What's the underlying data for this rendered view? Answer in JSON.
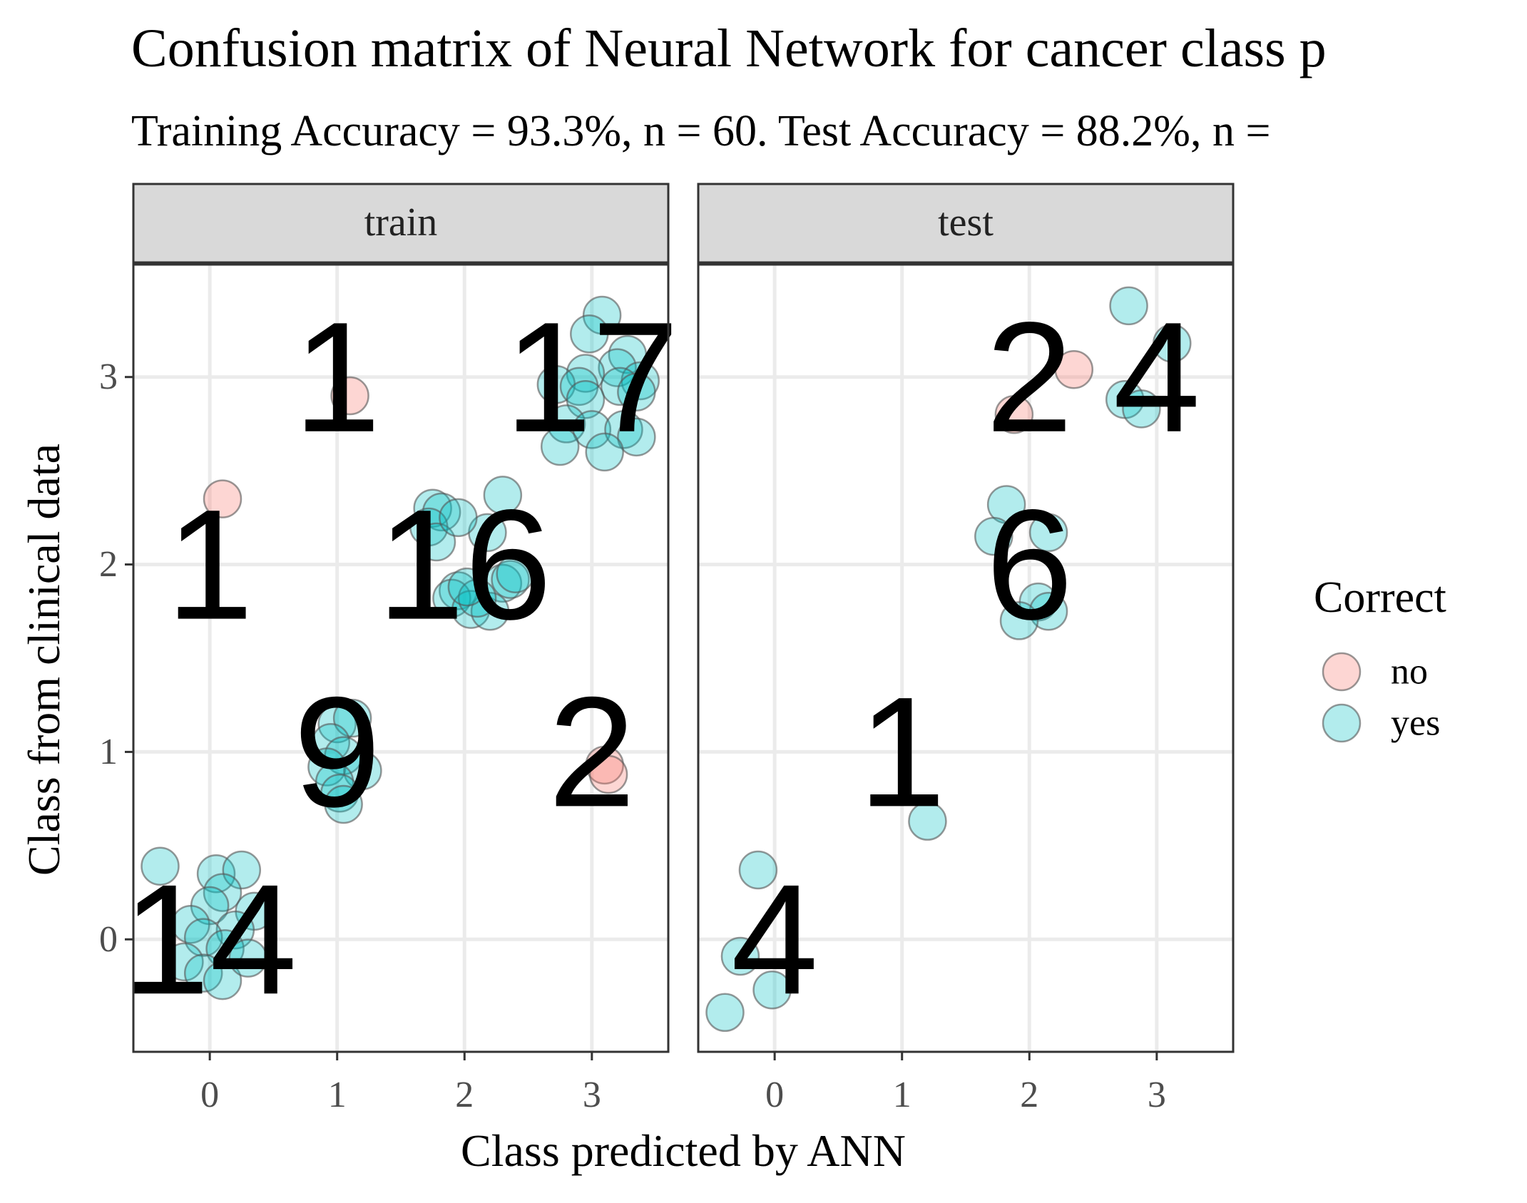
{
  "chart_data": {
    "type": "scatter",
    "title": "Confusion matrix of Neural Network for cancer class p",
    "subtitle": "Training Accuracy = 93.3%, n = 60. Test Accuracy = 88.2%, n =",
    "xlabel": "Class predicted by ANN",
    "ylabel": "Class from clinical data",
    "xlim": [
      -0.6,
      3.6
    ],
    "ylim": [
      -0.6,
      3.6
    ],
    "x_ticks": [
      "0",
      "1",
      "2",
      "3"
    ],
    "y_ticks": [
      "0",
      "1",
      "2",
      "3"
    ],
    "grid": true,
    "legend": {
      "title": "Correct",
      "position": "right",
      "entries": [
        {
          "label": "no",
          "color": "#F8766D"
        },
        {
          "label": "yes",
          "color": "#00BFC4"
        }
      ]
    },
    "panels": [
      {
        "strip": "train",
        "counts": [
          {
            "x": 0,
            "y": 0,
            "label": "14"
          },
          {
            "x": 1,
            "y": 1,
            "label": "9"
          },
          {
            "x": 3,
            "y": 1,
            "label": "2"
          },
          {
            "x": 0,
            "y": 2,
            "label": "1"
          },
          {
            "x": 2,
            "y": 2,
            "label": "16"
          },
          {
            "x": 1,
            "y": 3,
            "label": "1"
          },
          {
            "x": 3,
            "y": 3,
            "label": "17"
          }
        ],
        "points": [
          {
            "x": -0.39,
            "y": 0.39,
            "correct": "yes"
          },
          {
            "x": 0.05,
            "y": 0.35,
            "correct": "yes"
          },
          {
            "x": 0.25,
            "y": 0.37,
            "correct": "yes"
          },
          {
            "x": 0.1,
            "y": 0.25,
            "correct": "yes"
          },
          {
            "x": 0.0,
            "y": 0.18,
            "correct": "yes"
          },
          {
            "x": 0.35,
            "y": 0.15,
            "correct": "yes"
          },
          {
            "x": -0.15,
            "y": 0.08,
            "correct": "yes"
          },
          {
            "x": 0.2,
            "y": 0.05,
            "correct": "yes"
          },
          {
            "x": -0.05,
            "y": 0.01,
            "correct": "yes"
          },
          {
            "x": 0.12,
            "y": -0.05,
            "correct": "yes"
          },
          {
            "x": -0.2,
            "y": -0.12,
            "correct": "yes"
          },
          {
            "x": -0.05,
            "y": -0.18,
            "correct": "yes"
          },
          {
            "x": 0.1,
            "y": -0.22,
            "correct": "yes"
          },
          {
            "x": 0.3,
            "y": -0.1,
            "correct": "yes"
          },
          {
            "x": 1.0,
            "y": 1.15,
            "correct": "yes"
          },
          {
            "x": 1.12,
            "y": 1.18,
            "correct": "yes"
          },
          {
            "x": 0.95,
            "y": 1.05,
            "correct": "yes"
          },
          {
            "x": 1.05,
            "y": 0.98,
            "correct": "yes"
          },
          {
            "x": 0.92,
            "y": 0.92,
            "correct": "yes"
          },
          {
            "x": 1.2,
            "y": 0.9,
            "correct": "yes"
          },
          {
            "x": 0.98,
            "y": 0.84,
            "correct": "yes"
          },
          {
            "x": 1.02,
            "y": 0.78,
            "correct": "yes"
          },
          {
            "x": 1.05,
            "y": 0.72,
            "correct": "yes"
          },
          {
            "x": 3.1,
            "y": 0.93,
            "correct": "no"
          },
          {
            "x": 3.13,
            "y": 0.88,
            "correct": "no"
          },
          {
            "x": 0.1,
            "y": 2.35,
            "correct": "no"
          },
          {
            "x": 1.75,
            "y": 2.3,
            "correct": "yes"
          },
          {
            "x": 1.82,
            "y": 2.28,
            "correct": "yes"
          },
          {
            "x": 1.72,
            "y": 2.2,
            "correct": "yes"
          },
          {
            "x": 1.78,
            "y": 2.12,
            "correct": "yes"
          },
          {
            "x": 2.3,
            "y": 2.37,
            "correct": "yes"
          },
          {
            "x": 2.18,
            "y": 2.17,
            "correct": "yes"
          },
          {
            "x": 1.95,
            "y": 1.86,
            "correct": "yes"
          },
          {
            "x": 2.3,
            "y": 1.9,
            "correct": "yes"
          },
          {
            "x": 2.36,
            "y": 1.92,
            "correct": "yes"
          },
          {
            "x": 1.9,
            "y": 1.82,
            "correct": "yes"
          },
          {
            "x": 2.05,
            "y": 1.76,
            "correct": "yes"
          },
          {
            "x": 2.2,
            "y": 1.75,
            "correct": "yes"
          },
          {
            "x": 2.1,
            "y": 1.82,
            "correct": "yes"
          },
          {
            "x": 2.02,
            "y": 1.88,
            "correct": "yes"
          },
          {
            "x": 1.95,
            "y": 2.25,
            "correct": "yes"
          },
          {
            "x": 2.4,
            "y": 1.95,
            "correct": "yes"
          },
          {
            "x": 1.1,
            "y": 2.9,
            "correct": "no"
          },
          {
            "x": 3.08,
            "y": 3.33,
            "correct": "yes"
          },
          {
            "x": 2.98,
            "y": 3.23,
            "correct": "yes"
          },
          {
            "x": 3.28,
            "y": 3.12,
            "correct": "yes"
          },
          {
            "x": 3.2,
            "y": 3.05,
            "correct": "yes"
          },
          {
            "x": 2.95,
            "y": 3.02,
            "correct": "yes"
          },
          {
            "x": 2.72,
            "y": 2.96,
            "correct": "yes"
          },
          {
            "x": 2.9,
            "y": 2.95,
            "correct": "yes"
          },
          {
            "x": 3.38,
            "y": 2.98,
            "correct": "yes"
          },
          {
            "x": 3.22,
            "y": 2.95,
            "correct": "yes"
          },
          {
            "x": 3.35,
            "y": 2.92,
            "correct": "yes"
          },
          {
            "x": 2.95,
            "y": 2.88,
            "correct": "yes"
          },
          {
            "x": 2.8,
            "y": 2.75,
            "correct": "yes"
          },
          {
            "x": 3.0,
            "y": 2.72,
            "correct": "yes"
          },
          {
            "x": 3.25,
            "y": 2.72,
            "correct": "yes"
          },
          {
            "x": 3.35,
            "y": 2.68,
            "correct": "yes"
          },
          {
            "x": 2.75,
            "y": 2.63,
            "correct": "yes"
          },
          {
            "x": 3.1,
            "y": 2.6,
            "correct": "yes"
          }
        ]
      },
      {
        "strip": "test",
        "counts": [
          {
            "x": 0,
            "y": 0,
            "label": "4"
          },
          {
            "x": 1,
            "y": 1,
            "label": "1"
          },
          {
            "x": 2,
            "y": 2,
            "label": "6"
          },
          {
            "x": 2,
            "y": 3,
            "label": "2"
          },
          {
            "x": 3,
            "y": 3,
            "label": "4"
          }
        ],
        "points": [
          {
            "x": -0.13,
            "y": 0.37,
            "correct": "yes"
          },
          {
            "x": -0.27,
            "y": -0.09,
            "correct": "yes"
          },
          {
            "x": -0.02,
            "y": -0.27,
            "correct": "yes"
          },
          {
            "x": -0.39,
            "y": -0.39,
            "correct": "yes"
          },
          {
            "x": 1.2,
            "y": 0.63,
            "correct": "yes"
          },
          {
            "x": 1.82,
            "y": 2.32,
            "correct": "yes"
          },
          {
            "x": 1.72,
            "y": 2.15,
            "correct": "yes"
          },
          {
            "x": 2.15,
            "y": 2.17,
            "correct": "yes"
          },
          {
            "x": 2.07,
            "y": 1.8,
            "correct": "yes"
          },
          {
            "x": 2.15,
            "y": 1.75,
            "correct": "yes"
          },
          {
            "x": 1.92,
            "y": 1.7,
            "correct": "yes"
          },
          {
            "x": 1.88,
            "y": 2.8,
            "correct": "no"
          },
          {
            "x": 2.35,
            "y": 3.04,
            "correct": "no"
          },
          {
            "x": 2.78,
            "y": 3.38,
            "correct": "yes"
          },
          {
            "x": 3.12,
            "y": 3.18,
            "correct": "yes"
          },
          {
            "x": 2.75,
            "y": 2.88,
            "correct": "yes"
          },
          {
            "x": 2.88,
            "y": 2.83,
            "correct": "yes"
          }
        ]
      }
    ]
  }
}
